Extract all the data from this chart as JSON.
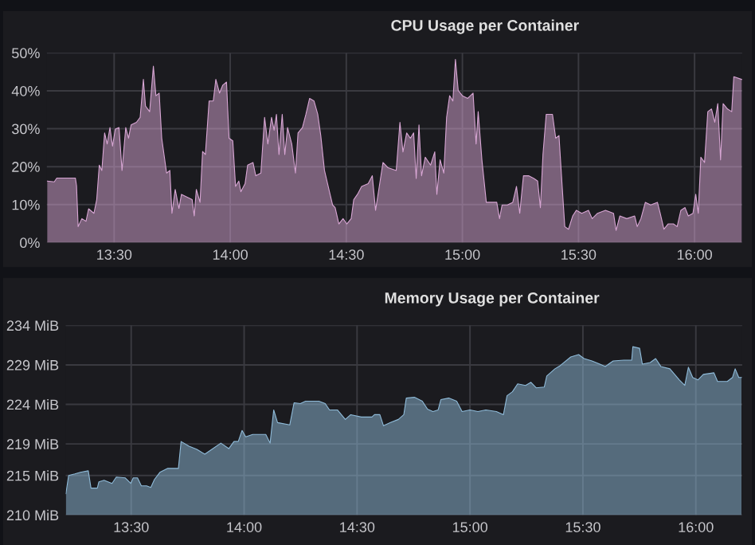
{
  "chart_data": [
    {
      "type": "area",
      "title": "CPU Usage per Container",
      "grid": true,
      "legend": false,
      "xlim": [
        13.21,
        16.205
      ],
      "xticks": [
        {
          "value": 13.5,
          "label": "13:30"
        },
        {
          "value": 14.0,
          "label": "14:00"
        },
        {
          "value": 14.5,
          "label": "14:30"
        },
        {
          "value": 15.0,
          "label": "15:00"
        },
        {
          "value": 15.5,
          "label": "15:30"
        },
        {
          "value": 16.0,
          "label": "16:00"
        }
      ],
      "ylim": [
        0,
        50
      ],
      "yticks": [
        {
          "value": 0,
          "label": "0%"
        },
        {
          "value": 10,
          "label": "10%"
        },
        {
          "value": 20,
          "label": "20%"
        },
        {
          "value": 30,
          "label": "30%"
        },
        {
          "value": 40,
          "label": "40%"
        },
        {
          "value": 50,
          "label": "50%"
        }
      ],
      "series": [
        {
          "color": "#d8a6d4",
          "x": [
            13.212,
            13.242,
            13.253,
            13.311,
            13.333,
            13.338,
            13.345,
            13.361,
            13.379,
            13.39,
            13.413,
            13.425,
            13.436,
            13.447,
            13.459,
            13.47,
            13.482,
            13.493,
            13.505,
            13.521,
            13.534,
            13.55,
            13.562,
            13.573,
            13.596,
            13.612,
            13.626,
            13.635,
            13.653,
            13.669,
            13.68,
            13.694,
            13.705,
            13.726,
            13.74,
            13.749,
            13.763,
            13.779,
            13.79,
            13.813,
            13.836,
            13.845,
            13.854,
            13.87,
            13.881,
            13.893,
            13.909,
            13.927,
            13.938,
            13.954,
            13.968,
            13.984,
            13.995,
            14.011,
            14.023,
            14.037,
            14.046,
            14.064,
            14.075,
            14.098,
            14.11,
            14.132,
            14.148,
            14.162,
            14.178,
            14.189,
            14.199,
            14.21,
            14.224,
            14.235,
            14.247,
            14.265,
            14.281,
            14.292,
            14.311,
            14.326,
            14.342,
            14.361,
            14.377,
            14.39,
            14.406,
            14.425,
            14.441,
            14.452,
            14.468,
            14.486,
            14.502,
            14.521,
            14.532,
            14.548,
            14.566,
            14.594,
            14.612,
            14.626,
            14.64,
            14.658,
            14.68,
            14.715,
            14.731,
            14.744,
            14.76,
            14.776,
            14.79,
            14.801,
            14.813,
            14.824,
            14.84,
            14.863,
            14.881,
            14.89,
            14.904,
            14.92,
            14.932,
            14.945,
            14.959,
            14.97,
            14.982,
            15.0,
            15.023,
            15.046,
            15.059,
            15.068,
            15.084,
            15.103,
            15.126,
            15.148,
            15.16,
            15.171,
            15.194,
            15.217,
            15.233,
            15.247,
            15.263,
            15.285,
            15.308,
            15.324,
            15.336,
            15.347,
            15.361,
            15.388,
            15.402,
            15.416,
            15.429,
            15.441,
            15.457,
            15.475,
            15.491,
            15.514,
            15.543,
            15.559,
            15.582,
            15.616,
            15.651,
            15.662,
            15.678,
            15.708,
            15.742,
            15.753,
            15.769,
            15.788,
            15.811,
            15.84,
            15.852,
            15.868,
            15.886,
            15.909,
            15.925,
            15.941,
            15.959,
            15.973,
            15.993,
            16.005,
            16.016,
            16.027,
            16.043,
            16.057,
            16.073,
            16.087,
            16.1,
            16.112,
            16.123,
            16.142,
            16.16,
            16.169,
            16.203
          ],
          "values": [
            16.2,
            16,
            17,
            17,
            17,
            15,
            4.2,
            6.3,
            5.6,
            8.9,
            7.7,
            11.3,
            20.4,
            19,
            28.9,
            26,
            30.3,
            25.4,
            29.9,
            30.3,
            19,
            30.3,
            27.5,
            31,
            31.7,
            33,
            43,
            36,
            34.5,
            46.5,
            38.7,
            39.4,
            27.5,
            18.3,
            19,
            7.7,
            14,
            9,
            12.7,
            12,
            11.3,
            7,
            14,
            10.6,
            24,
            23.2,
            37.3,
            37.3,
            43,
            39.4,
            41.5,
            42.3,
            27.5,
            26.8,
            14.8,
            16.2,
            13.4,
            15.5,
            20.4,
            21.1,
            17.6,
            18.3,
            33,
            26,
            33,
            29.6,
            33.8,
            23.2,
            33.8,
            23.2,
            30.3,
            26,
            18.3,
            28.9,
            30.3,
            33.8,
            38,
            37.3,
            33.8,
            28.2,
            19,
            14,
            9.9,
            9.2,
            4.9,
            6.3,
            4.9,
            6.3,
            11.3,
            12.7,
            14.8,
            15.5,
            17.6,
            8.5,
            14,
            21.1,
            19.7,
            19,
            31.7,
            23.9,
            28.9,
            27.5,
            28.9,
            16.9,
            31,
            17.6,
            22.5,
            20.4,
            23.9,
            12.7,
            21.8,
            18.3,
            33,
            38.7,
            37.3,
            48.3,
            40.1,
            38.7,
            38,
            39.4,
            26,
            34.5,
            21.8,
            10.6,
            10.6,
            10.6,
            6.3,
            9.9,
            9.9,
            10.6,
            14.8,
            7.7,
            17.6,
            17.6,
            16.9,
            16.2,
            9.2,
            23.2,
            33.8,
            33.8,
            27.5,
            28.2,
            15.5,
            4.2,
            3.5,
            7,
            8.5,
            7.7,
            8.5,
            6.3,
            7.7,
            8.5,
            7.7,
            3.2,
            7,
            6.3,
            7,
            4.2,
            6.3,
            10.6,
            9.9,
            10.6,
            7.7,
            3.5,
            4.9,
            4.9,
            4.2,
            8.5,
            9.2,
            7,
            7.7,
            12.7,
            7.7,
            22.5,
            21.1,
            34.5,
            35.2,
            31.7,
            36.6,
            21.8,
            36.6,
            35.2,
            34.5,
            43.7,
            43
          ]
        }
      ]
    },
    {
      "type": "area",
      "title": "Memory Usage per Container",
      "grid": true,
      "legend": false,
      "xlim": [
        13.21,
        16.205
      ],
      "xticks": [
        {
          "value": 13.5,
          "label": "13:30"
        },
        {
          "value": 14.0,
          "label": "14:00"
        },
        {
          "value": 14.5,
          "label": "14:30"
        },
        {
          "value": 15.0,
          "label": "15:00"
        },
        {
          "value": 15.5,
          "label": "15:30"
        },
        {
          "value": 16.0,
          "label": "16:00"
        }
      ],
      "ylim": [
        210,
        234
      ],
      "yticks": [
        {
          "value": 210,
          "label": "210 MiB"
        },
        {
          "value": 215,
          "label": "215 MiB"
        },
        {
          "value": 219,
          "label": "219 MiB"
        },
        {
          "value": 224,
          "label": "224 MiB"
        },
        {
          "value": 229,
          "label": "229 MiB"
        },
        {
          "value": 234,
          "label": "234 MiB"
        }
      ],
      "series": [
        {
          "color": "#8fbbd9",
          "x": [
            13.211,
            13.223,
            13.251,
            13.275,
            13.31,
            13.322,
            13.35,
            13.357,
            13.38,
            13.415,
            13.434,
            13.474,
            13.498,
            13.509,
            13.528,
            13.545,
            13.568,
            13.587,
            13.603,
            13.627,
            13.662,
            13.709,
            13.721,
            13.756,
            13.791,
            13.826,
            13.862,
            13.897,
            13.932,
            13.955,
            13.974,
            13.991,
            14.007,
            14.038,
            14.096,
            14.115,
            14.131,
            14.148,
            14.202,
            14.221,
            14.249,
            14.272,
            14.296,
            14.331,
            14.359,
            14.378,
            14.413,
            14.448,
            14.472,
            14.519,
            14.566,
            14.577,
            14.601,
            14.617,
            14.648,
            14.683,
            14.707,
            14.718,
            14.754,
            14.789,
            14.812,
            14.836,
            14.859,
            14.871,
            14.906,
            14.941,
            14.965,
            15.0,
            15.035,
            15.07,
            15.117,
            15.148,
            15.164,
            15.188,
            15.211,
            15.246,
            15.27,
            15.293,
            15.329,
            15.34,
            15.376,
            15.399,
            15.446,
            15.481,
            15.505,
            15.54,
            15.575,
            15.599,
            15.634,
            15.681,
            15.716,
            15.721,
            15.751,
            15.763,
            15.798,
            15.822,
            15.845,
            15.885,
            15.927,
            15.951,
            15.967,
            15.986,
            16.009,
            16.033,
            16.08,
            16.096,
            16.139,
            16.162,
            16.174,
            16.19,
            16.202
          ],
          "values": [
            212.7,
            215.0,
            215.2,
            215.4,
            215.6,
            213.4,
            213.4,
            214.2,
            214.4,
            214.0,
            214.8,
            214.7,
            214.0,
            214.7,
            214.7,
            213.7,
            213.7,
            213.5,
            214.5,
            215.4,
            215.9,
            215.9,
            219.3,
            218.7,
            218.3,
            217.7,
            218.4,
            219.1,
            218.4,
            219.3,
            219.3,
            220.7,
            219.9,
            220.2,
            220.2,
            219.1,
            223.3,
            221.7,
            221.4,
            224.2,
            224.1,
            224.4,
            224.4,
            224.4,
            224.1,
            223.3,
            223.3,
            222.1,
            222.7,
            222.4,
            222.4,
            222.7,
            222.7,
            221.3,
            221.7,
            222.1,
            222.7,
            224.8,
            224.9,
            224.4,
            223.4,
            223.1,
            223.3,
            224.6,
            224.8,
            224.4,
            223.1,
            223.3,
            223.1,
            223.3,
            223.1,
            222.7,
            225.1,
            225.6,
            226.6,
            226.4,
            226.8,
            226.1,
            226.2,
            227.6,
            228.5,
            228.9,
            230.0,
            230.3,
            229.8,
            229.5,
            229.1,
            228.8,
            229.5,
            229.6,
            229.6,
            231.3,
            231.1,
            229.1,
            229.3,
            229.8,
            228.8,
            228.5,
            227.1,
            226.4,
            228.7,
            227.4,
            227.1,
            227.8,
            228.0,
            226.9,
            226.9,
            227.4,
            228.5,
            227.4,
            227.4
          ]
        }
      ]
    }
  ]
}
